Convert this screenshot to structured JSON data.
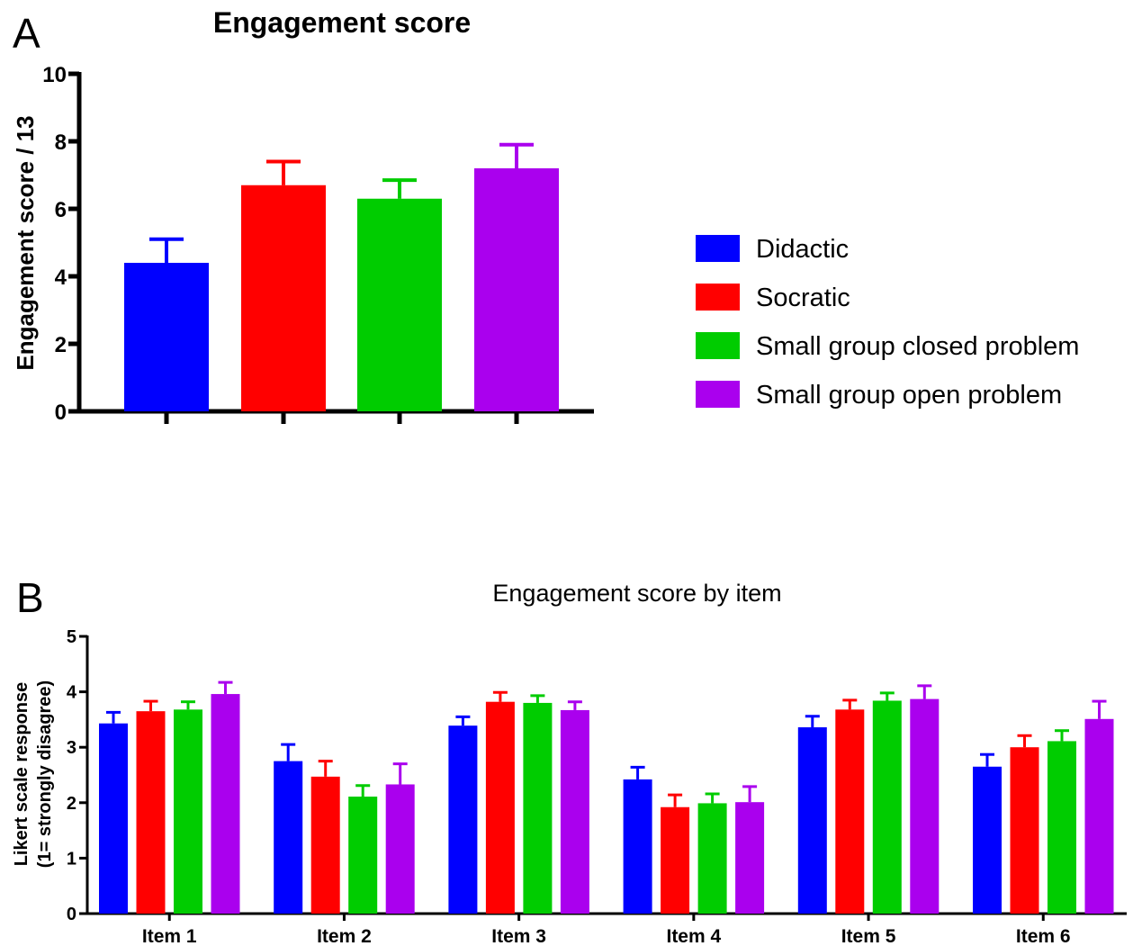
{
  "panels": {
    "a": {
      "letter": "A"
    },
    "b": {
      "letter": "B"
    }
  },
  "legend": {
    "items": [
      {
        "label": "Didactic",
        "color": "#0000ff"
      },
      {
        "label": "Socratic",
        "color": "#ff0000"
      },
      {
        "label": "Small group closed problem",
        "color": "#00cc00"
      },
      {
        "label": "Small group open problem",
        "color": "#aa00ee"
      }
    ]
  },
  "chart_data": [
    {
      "type": "bar",
      "title": "Engagement score",
      "xlabel": "",
      "ylabel": "Engagement score / 13",
      "ylim": [
        0,
        10
      ],
      "yticks": [
        0,
        2,
        4,
        6,
        8,
        10
      ],
      "grid": false,
      "legend_position": "right",
      "series": [
        {
          "name": "Didactic",
          "value": 4.4,
          "error": 0.7
        },
        {
          "name": "Socratic",
          "value": 6.7,
          "error": 0.7
        },
        {
          "name": "Small group closed problem",
          "value": 6.3,
          "error": 0.55
        },
        {
          "name": "Small group open problem",
          "value": 7.2,
          "error": 0.7
        }
      ]
    },
    {
      "type": "bar",
      "title": "Engagement score by item",
      "xlabel": "",
      "ylabel": [
        "Likert scale response",
        "(1= strongly disagree)"
      ],
      "ylim": [
        0,
        5
      ],
      "yticks": [
        0,
        1,
        2,
        3,
        4,
        5
      ],
      "grid": false,
      "categories": [
        "Item 1",
        "Item 2",
        "Item 3",
        "Item 4",
        "Item 5",
        "Item 6"
      ],
      "series": [
        {
          "name": "Didactic",
          "values": [
            3.43,
            2.75,
            3.39,
            2.42,
            3.36,
            2.65
          ],
          "errors": [
            0.2,
            0.3,
            0.16,
            0.22,
            0.2,
            0.22
          ]
        },
        {
          "name": "Socratic",
          "values": [
            3.65,
            2.47,
            3.82,
            1.92,
            3.68,
            3.0
          ],
          "errors": [
            0.18,
            0.28,
            0.17,
            0.22,
            0.17,
            0.21
          ]
        },
        {
          "name": "Small group closed problem",
          "values": [
            3.68,
            2.11,
            3.8,
            1.99,
            3.84,
            3.11
          ],
          "errors": [
            0.14,
            0.2,
            0.13,
            0.17,
            0.14,
            0.19
          ]
        },
        {
          "name": "Small group open problem",
          "values": [
            3.96,
            2.33,
            3.67,
            2.01,
            3.87,
            3.51
          ],
          "errors": [
            0.21,
            0.37,
            0.15,
            0.28,
            0.24,
            0.32
          ]
        }
      ]
    }
  ]
}
